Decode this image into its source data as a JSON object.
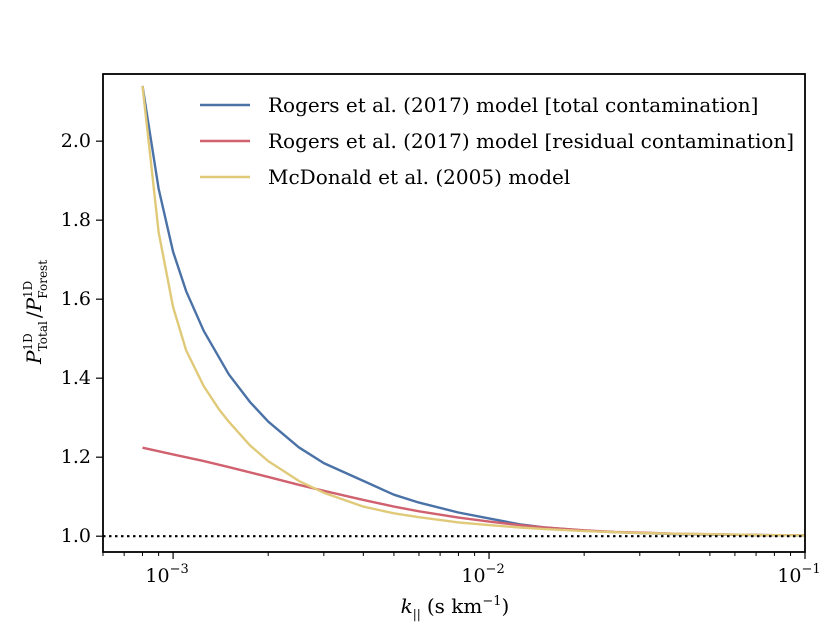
{
  "chart_data": {
    "type": "line",
    "title": "",
    "xlabel": {
      "main": "k",
      "sub": "||",
      "units": "(s km",
      "units_sup": "−1",
      "units_close": ")"
    },
    "ylabel": {
      "num_base": "P",
      "num_sup": "1D",
      "num_sub": "Total",
      "slash": "/",
      "den_base": "P",
      "den_sup": "1D",
      "den_sub": "Forest"
    },
    "xscale": "log",
    "xlim": [
      0.0006,
      0.1
    ],
    "ylim": [
      0.96,
      2.17
    ],
    "grid": false,
    "legend_position": "top-right",
    "x_ticks": [
      {
        "value": 0.001,
        "base": "10",
        "exp": "−3"
      },
      {
        "value": 0.01,
        "base": "10",
        "exp": "−2"
      },
      {
        "value": 0.1,
        "base": "10",
        "exp": "−1"
      }
    ],
    "y_ticks": [
      {
        "value": 1.0,
        "label": "1.0"
      },
      {
        "value": 1.2,
        "label": "1.2"
      },
      {
        "value": 1.4,
        "label": "1.4"
      },
      {
        "value": 1.6,
        "label": "1.6"
      },
      {
        "value": 1.8,
        "label": "1.8"
      },
      {
        "value": 2.0,
        "label": "2.0"
      }
    ],
    "reference_line": {
      "y": 1.0,
      "style": "dotted",
      "color": "#000000"
    },
    "series": [
      {
        "name": "Rogers et al. (2017) model [total contamination]",
        "color": "#4a72a6",
        "points": [
          [
            0.0008,
            2.14
          ],
          [
            0.0009,
            1.88
          ],
          [
            0.001,
            1.72
          ],
          [
            0.0011,
            1.62
          ],
          [
            0.00125,
            1.52
          ],
          [
            0.0015,
            1.41
          ],
          [
            0.00175,
            1.34
          ],
          [
            0.002,
            1.29
          ],
          [
            0.0025,
            1.225
          ],
          [
            0.003,
            1.185
          ],
          [
            0.004,
            1.14
          ],
          [
            0.005,
            1.105
          ],
          [
            0.006,
            1.085
          ],
          [
            0.008,
            1.06
          ],
          [
            0.01,
            1.045
          ],
          [
            0.0125,
            1.03
          ],
          [
            0.015,
            1.022
          ],
          [
            0.02,
            1.014
          ],
          [
            0.025,
            1.01
          ],
          [
            0.03,
            1.008
          ],
          [
            0.04,
            1.005
          ],
          [
            0.05,
            1.004
          ],
          [
            0.07,
            1.003
          ],
          [
            0.1,
            1.002
          ]
        ]
      },
      {
        "name": "Rogers et al. (2017) model [residual contamination]",
        "color": "#d0616f",
        "points": [
          [
            0.0008,
            1.224
          ],
          [
            0.001,
            1.207
          ],
          [
            0.00125,
            1.19
          ],
          [
            0.0015,
            1.175
          ],
          [
            0.002,
            1.15
          ],
          [
            0.0025,
            1.13
          ],
          [
            0.003,
            1.115
          ],
          [
            0.004,
            1.092
          ],
          [
            0.005,
            1.075
          ],
          [
            0.006,
            1.063
          ],
          [
            0.008,
            1.047
          ],
          [
            0.01,
            1.037
          ],
          [
            0.0125,
            1.028
          ],
          [
            0.015,
            1.022
          ],
          [
            0.02,
            1.015
          ],
          [
            0.025,
            1.011
          ],
          [
            0.03,
            1.009
          ],
          [
            0.04,
            1.006
          ],
          [
            0.05,
            1.005
          ],
          [
            0.07,
            1.003
          ],
          [
            0.1,
            1.002
          ]
        ]
      },
      {
        "name": "McDonald et al. (2005) model",
        "color": "#e0ca7a",
        "points": [
          [
            0.0008,
            2.14
          ],
          [
            0.00085,
            1.95
          ],
          [
            0.0009,
            1.77
          ],
          [
            0.001,
            1.58
          ],
          [
            0.0011,
            1.47
          ],
          [
            0.00125,
            1.38
          ],
          [
            0.0014,
            1.32
          ],
          [
            0.0015,
            1.29
          ],
          [
            0.00175,
            1.23
          ],
          [
            0.002,
            1.19
          ],
          [
            0.0025,
            1.14
          ],
          [
            0.003,
            1.11
          ],
          [
            0.004,
            1.075
          ],
          [
            0.005,
            1.058
          ],
          [
            0.006,
            1.048
          ],
          [
            0.008,
            1.035
          ],
          [
            0.01,
            1.028
          ],
          [
            0.0125,
            1.022
          ],
          [
            0.015,
            1.018
          ],
          [
            0.02,
            1.013
          ],
          [
            0.025,
            1.01
          ],
          [
            0.03,
            1.008
          ],
          [
            0.04,
            1.006
          ],
          [
            0.05,
            1.005
          ],
          [
            0.07,
            1.003
          ],
          [
            0.1,
            1.002
          ]
        ]
      }
    ]
  }
}
